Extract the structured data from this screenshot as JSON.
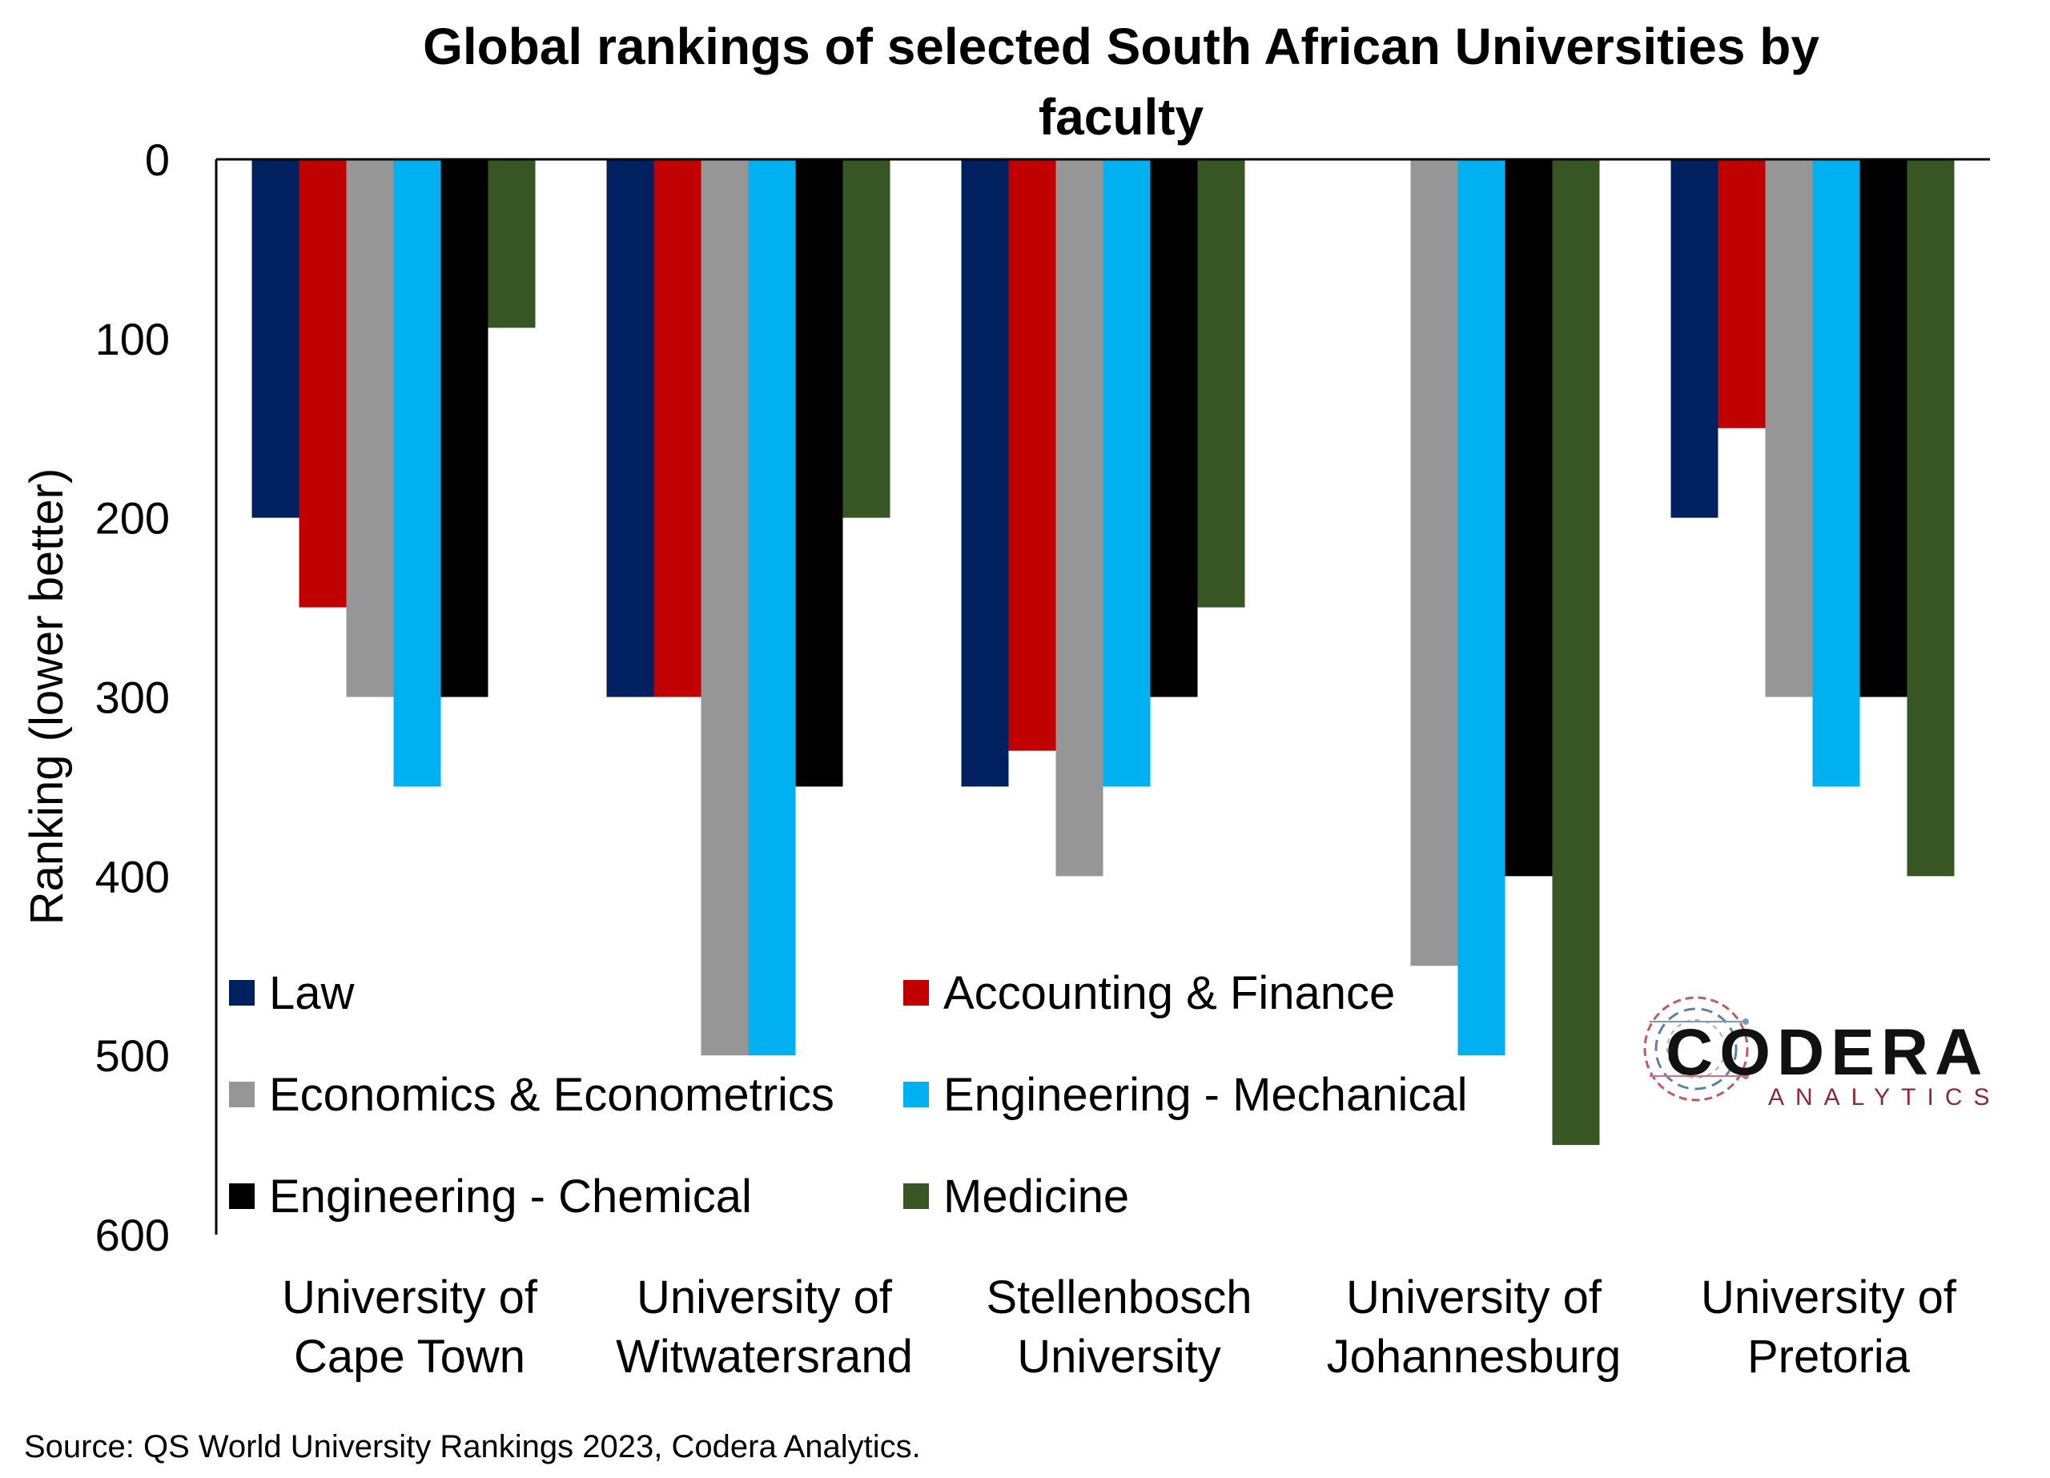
{
  "chart_data": {
    "type": "bar",
    "title": "Global rankings of selected South African Universities by faculty",
    "ylabel": "Ranking (lower better)",
    "xlabel": "",
    "ylim": [
      0,
      600
    ],
    "y_inverted": true,
    "yticks": [
      "0",
      "100",
      "200",
      "300",
      "400",
      "500",
      "600"
    ],
    "categories": [
      [
        "University of",
        "Cape Town"
      ],
      [
        "University of",
        "Witwatersrand"
      ],
      [
        "Stellenbosch",
        "University"
      ],
      [
        "University of",
        "Johannesburg"
      ],
      [
        "University of",
        "Pretoria"
      ]
    ],
    "series": [
      {
        "name": "Law",
        "color": "#002060",
        "values": [
          200,
          300,
          350,
          null,
          200
        ]
      },
      {
        "name": "Accounting & Finance",
        "color": "#c00000",
        "values": [
          250,
          300,
          330,
          null,
          150
        ]
      },
      {
        "name": "Economics & Econometrics",
        "color": "#969696",
        "values": [
          300,
          500,
          400,
          450,
          300
        ]
      },
      {
        "name": "Engineering - Mechanical",
        "color": "#00b0f0",
        "values": [
          350,
          500,
          350,
          500,
          350
        ]
      },
      {
        "name": "Engineering - Chemical",
        "color": "#000000",
        "values": [
          300,
          350,
          300,
          400,
          300
        ]
      },
      {
        "name": "Medicine",
        "color": "#375623",
        "values": [
          94,
          200,
          250,
          550,
          400
        ]
      }
    ],
    "legend_position": "bottom-left",
    "grid": false
  },
  "source": "Source: QS World University Rankings 2023, Codera Analytics.",
  "logo": {
    "name": "CODERA",
    "tagline": "ANALYTICS",
    "icon": "circuit-ring-icon"
  }
}
